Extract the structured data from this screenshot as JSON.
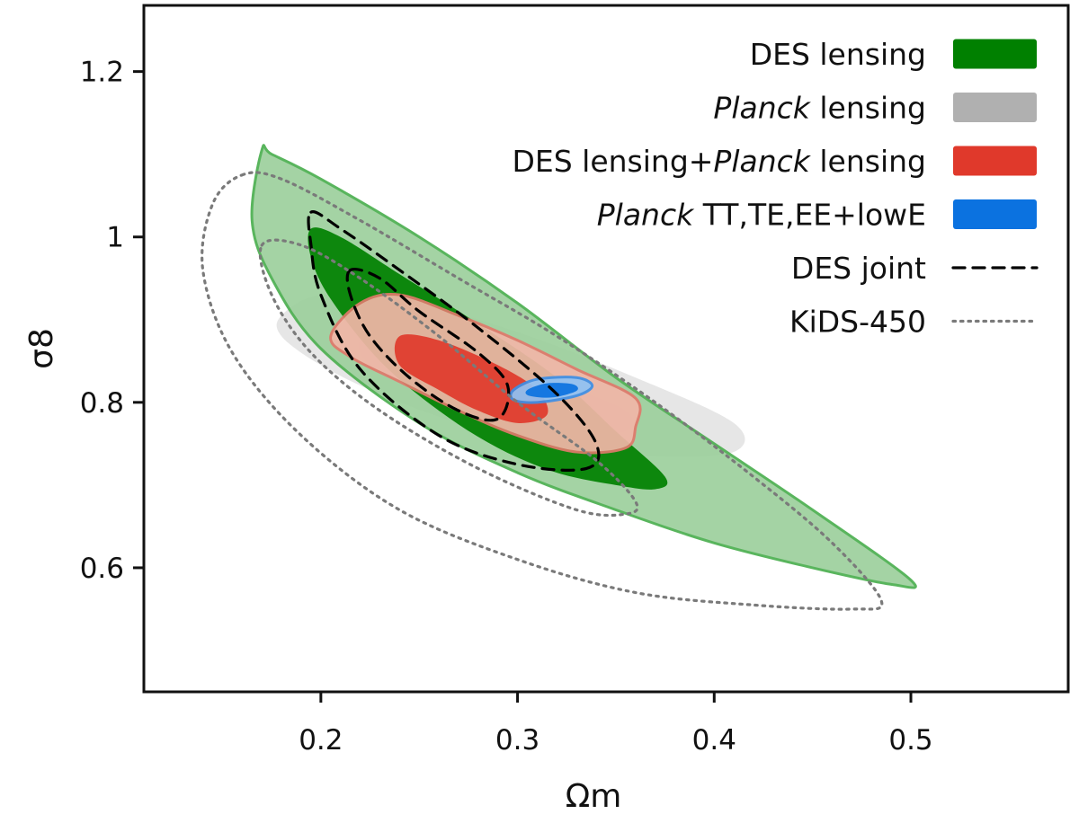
{
  "chart_data": {
    "type": "contour",
    "title": "",
    "xlabel": "Ωm",
    "ylabel": "σ8",
    "xlim": [
      0.11,
      0.58
    ],
    "ylim": [
      0.45,
      1.28
    ],
    "xticks": [
      {
        "value": 0.2,
        "label": "0.2"
      },
      {
        "value": 0.3,
        "label": "0.3"
      },
      {
        "value": 0.4,
        "label": "0.4"
      },
      {
        "value": 0.5,
        "label": "0.5"
      }
    ],
    "yticks": [
      {
        "value": 0.6,
        "label": "0.6"
      },
      {
        "value": 0.8,
        "label": "0.8"
      },
      {
        "value": 1.0,
        "label": "1"
      },
      {
        "value": 1.2,
        "label": "1.2"
      }
    ],
    "grid": false,
    "legend_position": "top-right",
    "legend": [
      {
        "id": "des-lensing",
        "label_parts": [
          {
            "text": "DES lensing",
            "italic": false
          }
        ],
        "style": "fill",
        "color": "#008000"
      },
      {
        "id": "planck-lensing",
        "label_parts": [
          {
            "text": "Planck",
            "italic": true
          },
          {
            "text": " lensing",
            "italic": false
          }
        ],
        "style": "fill",
        "color": "#b0b0b0"
      },
      {
        "id": "combined",
        "label_parts": [
          {
            "text": "DES lensing+",
            "italic": false
          },
          {
            "text": "Planck",
            "italic": true
          },
          {
            "text": " lensing",
            "italic": false
          }
        ],
        "style": "fill",
        "color": "#e0392b"
      },
      {
        "id": "planck-cmb",
        "label_parts": [
          {
            "text": "Planck",
            "italic": true
          },
          {
            "text": " TT,TE,EE+lowE",
            "italic": false
          }
        ],
        "style": "fill",
        "color": "#0b72e0"
      },
      {
        "id": "des-joint",
        "label_parts": [
          {
            "text": "DES joint",
            "italic": false
          }
        ],
        "style": "dashed",
        "color": "#000000"
      },
      {
        "id": "kids",
        "label_parts": [
          {
            "text": "KiDS-450",
            "italic": false
          }
        ],
        "style": "dotted",
        "color": "#7a7a7a"
      }
    ],
    "series": [
      {
        "id": "planck-lensing",
        "name": "Planck lensing",
        "type": "filled-contour",
        "color": "#b0b0b0",
        "contours": [
          {
            "level": "95%",
            "fill": "#e2e2e2",
            "stroke": "none",
            "points": [
              [
                0.18,
                0.905
              ],
              [
                0.2,
                0.93
              ],
              [
                0.24,
                0.925
              ],
              [
                0.3,
                0.885
              ],
              [
                0.36,
                0.83
              ],
              [
                0.41,
                0.775
              ],
              [
                0.41,
                0.74
              ],
              [
                0.37,
                0.735
              ],
              [
                0.32,
                0.745
              ],
              [
                0.27,
                0.775
              ],
              [
                0.23,
                0.81
              ],
              [
                0.2,
                0.845
              ],
              [
                0.18,
                0.88
              ]
            ]
          },
          {
            "level": "68%",
            "fill": "#bdbdbd",
            "stroke": "none",
            "points": [
              [
                0.22,
                0.875
              ],
              [
                0.24,
                0.885
              ],
              [
                0.28,
                0.86
              ],
              [
                0.32,
                0.825
              ],
              [
                0.355,
                0.79
              ],
              [
                0.355,
                0.765
              ],
              [
                0.33,
                0.765
              ],
              [
                0.29,
                0.785
              ],
              [
                0.25,
                0.815
              ],
              [
                0.225,
                0.845
              ]
            ]
          }
        ]
      },
      {
        "id": "des-lensing",
        "name": "DES lensing",
        "type": "filled-contour",
        "color": "#008000",
        "contours": [
          {
            "level": "95%",
            "fill": "#9dd09d",
            "stroke": "#4caf50",
            "points": [
              [
                0.17,
                1.105
              ],
              [
                0.175,
                1.1
              ],
              [
                0.2,
                1.07
              ],
              [
                0.25,
                1.0
              ],
              [
                0.3,
                0.92
              ],
              [
                0.35,
                0.83
              ],
              [
                0.4,
                0.75
              ],
              [
                0.45,
                0.67
              ],
              [
                0.5,
                0.585
              ],
              [
                0.49,
                0.58
              ],
              [
                0.45,
                0.6
              ],
              [
                0.4,
                0.63
              ],
              [
                0.35,
                0.67
              ],
              [
                0.3,
                0.715
              ],
              [
                0.25,
                0.775
              ],
              [
                0.2,
                0.865
              ],
              [
                0.175,
                0.95
              ],
              [
                0.165,
                1.02
              ]
            ]
          },
          {
            "level": "68%",
            "fill": "#008000",
            "stroke": "none",
            "points": [
              [
                0.195,
                1.01
              ],
              [
                0.21,
                1.0
              ],
              [
                0.24,
                0.955
              ],
              [
                0.28,
                0.895
              ],
              [
                0.32,
                0.83
              ],
              [
                0.35,
                0.765
              ],
              [
                0.375,
                0.71
              ],
              [
                0.37,
                0.695
              ],
              [
                0.35,
                0.7
              ],
              [
                0.32,
                0.715
              ],
              [
                0.29,
                0.745
              ],
              [
                0.26,
                0.79
              ],
              [
                0.23,
                0.85
              ],
              [
                0.205,
                0.925
              ],
              [
                0.195,
                0.975
              ]
            ]
          }
        ]
      },
      {
        "id": "combined",
        "name": "DES lensing+Planck lensing",
        "type": "filled-contour",
        "color": "#e0392b",
        "contours": [
          {
            "level": "95%",
            "fill": "#f2b6a8",
            "stroke": "#e0796b",
            "points": [
              [
                0.205,
                0.88
              ],
              [
                0.22,
                0.92
              ],
              [
                0.24,
                0.93
              ],
              [
                0.27,
                0.905
              ],
              [
                0.3,
                0.875
              ],
              [
                0.33,
                0.84
              ],
              [
                0.36,
                0.805
              ],
              [
                0.36,
                0.77
              ],
              [
                0.355,
                0.745
              ],
              [
                0.33,
                0.74
              ],
              [
                0.3,
                0.76
              ],
              [
                0.27,
                0.79
              ],
              [
                0.24,
                0.825
              ],
              [
                0.215,
                0.855
              ]
            ]
          },
          {
            "level": "68%",
            "fill": "#e0392b",
            "stroke": "none",
            "points": [
              [
                0.24,
                0.88
              ],
              [
                0.26,
                0.875
              ],
              [
                0.29,
                0.845
              ],
              [
                0.31,
                0.815
              ],
              [
                0.315,
                0.785
              ],
              [
                0.3,
                0.775
              ],
              [
                0.28,
                0.79
              ],
              [
                0.26,
                0.815
              ],
              [
                0.24,
                0.845
              ]
            ]
          }
        ]
      },
      {
        "id": "planck-cmb",
        "name": "Planck TT,TE,EE+lowE",
        "type": "filled-contour",
        "color": "#0b72e0",
        "contours": [
          {
            "level": "95%",
            "fill": "#8fc2f5",
            "stroke": "#3d8fe6",
            "points": [
              [
                0.298,
                0.815
              ],
              [
                0.31,
                0.828
              ],
              [
                0.33,
                0.83
              ],
              [
                0.338,
                0.82
              ],
              [
                0.33,
                0.808
              ],
              [
                0.31,
                0.8
              ],
              [
                0.298,
                0.803
              ]
            ]
          },
          {
            "level": "68%",
            "fill": "#0b72e0",
            "stroke": "none",
            "points": [
              [
                0.305,
                0.815
              ],
              [
                0.315,
                0.823
              ],
              [
                0.328,
                0.822
              ],
              [
                0.33,
                0.814
              ],
              [
                0.318,
                0.806
              ],
              [
                0.306,
                0.808
              ]
            ]
          }
        ]
      },
      {
        "id": "des-joint",
        "name": "DES joint",
        "type": "line-contour",
        "color": "#000000",
        "dash": "dashed",
        "contours": [
          {
            "level": "95%",
            "points": [
              [
                0.195,
                1.03
              ],
              [
                0.21,
                1.01
              ],
              [
                0.24,
                0.96
              ],
              [
                0.28,
                0.89
              ],
              [
                0.32,
                0.81
              ],
              [
                0.34,
                0.75
              ],
              [
                0.335,
                0.72
              ],
              [
                0.3,
                0.725
              ],
              [
                0.26,
                0.76
              ],
              [
                0.22,
                0.84
              ],
              [
                0.2,
                0.93
              ],
              [
                0.195,
                0.99
              ]
            ]
          },
          {
            "level": "68%",
            "points": [
              [
                0.215,
                0.96
              ],
              [
                0.23,
                0.95
              ],
              [
                0.25,
                0.91
              ],
              [
                0.28,
                0.86
              ],
              [
                0.295,
                0.82
              ],
              [
                0.29,
                0.78
              ],
              [
                0.27,
                0.79
              ],
              [
                0.245,
                0.83
              ],
              [
                0.225,
                0.88
              ],
              [
                0.215,
                0.93
              ]
            ]
          }
        ]
      },
      {
        "id": "kids",
        "name": "KiDS-450",
        "type": "line-contour",
        "color": "#7a7a7a",
        "dash": "dotted",
        "contours": [
          {
            "level": "95%",
            "points": [
              [
                0.16,
                1.075
              ],
              [
                0.18,
                1.07
              ],
              [
                0.22,
                1.02
              ],
              [
                0.27,
                0.95
              ],
              [
                0.32,
                0.88
              ],
              [
                0.37,
                0.8
              ],
              [
                0.42,
                0.71
              ],
              [
                0.46,
                0.63
              ],
              [
                0.485,
                0.56
              ],
              [
                0.47,
                0.55
              ],
              [
                0.42,
                0.555
              ],
              [
                0.36,
                0.57
              ],
              [
                0.3,
                0.61
              ],
              [
                0.24,
                0.67
              ],
              [
                0.19,
                0.76
              ],
              [
                0.155,
                0.86
              ],
              [
                0.14,
                0.96
              ],
              [
                0.145,
                1.04
              ]
            ]
          },
          {
            "level": "68%",
            "points": [
              [
                0.17,
                0.99
              ],
              [
                0.19,
                0.99
              ],
              [
                0.22,
                0.95
              ],
              [
                0.26,
                0.88
              ],
              [
                0.3,
                0.8
              ],
              [
                0.34,
                0.73
              ],
              [
                0.36,
                0.68
              ],
              [
                0.355,
                0.665
              ],
              [
                0.33,
                0.67
              ],
              [
                0.28,
                0.72
              ],
              [
                0.23,
                0.79
              ],
              [
                0.195,
                0.86
              ],
              [
                0.175,
                0.93
              ]
            ]
          }
        ]
      }
    ]
  }
}
